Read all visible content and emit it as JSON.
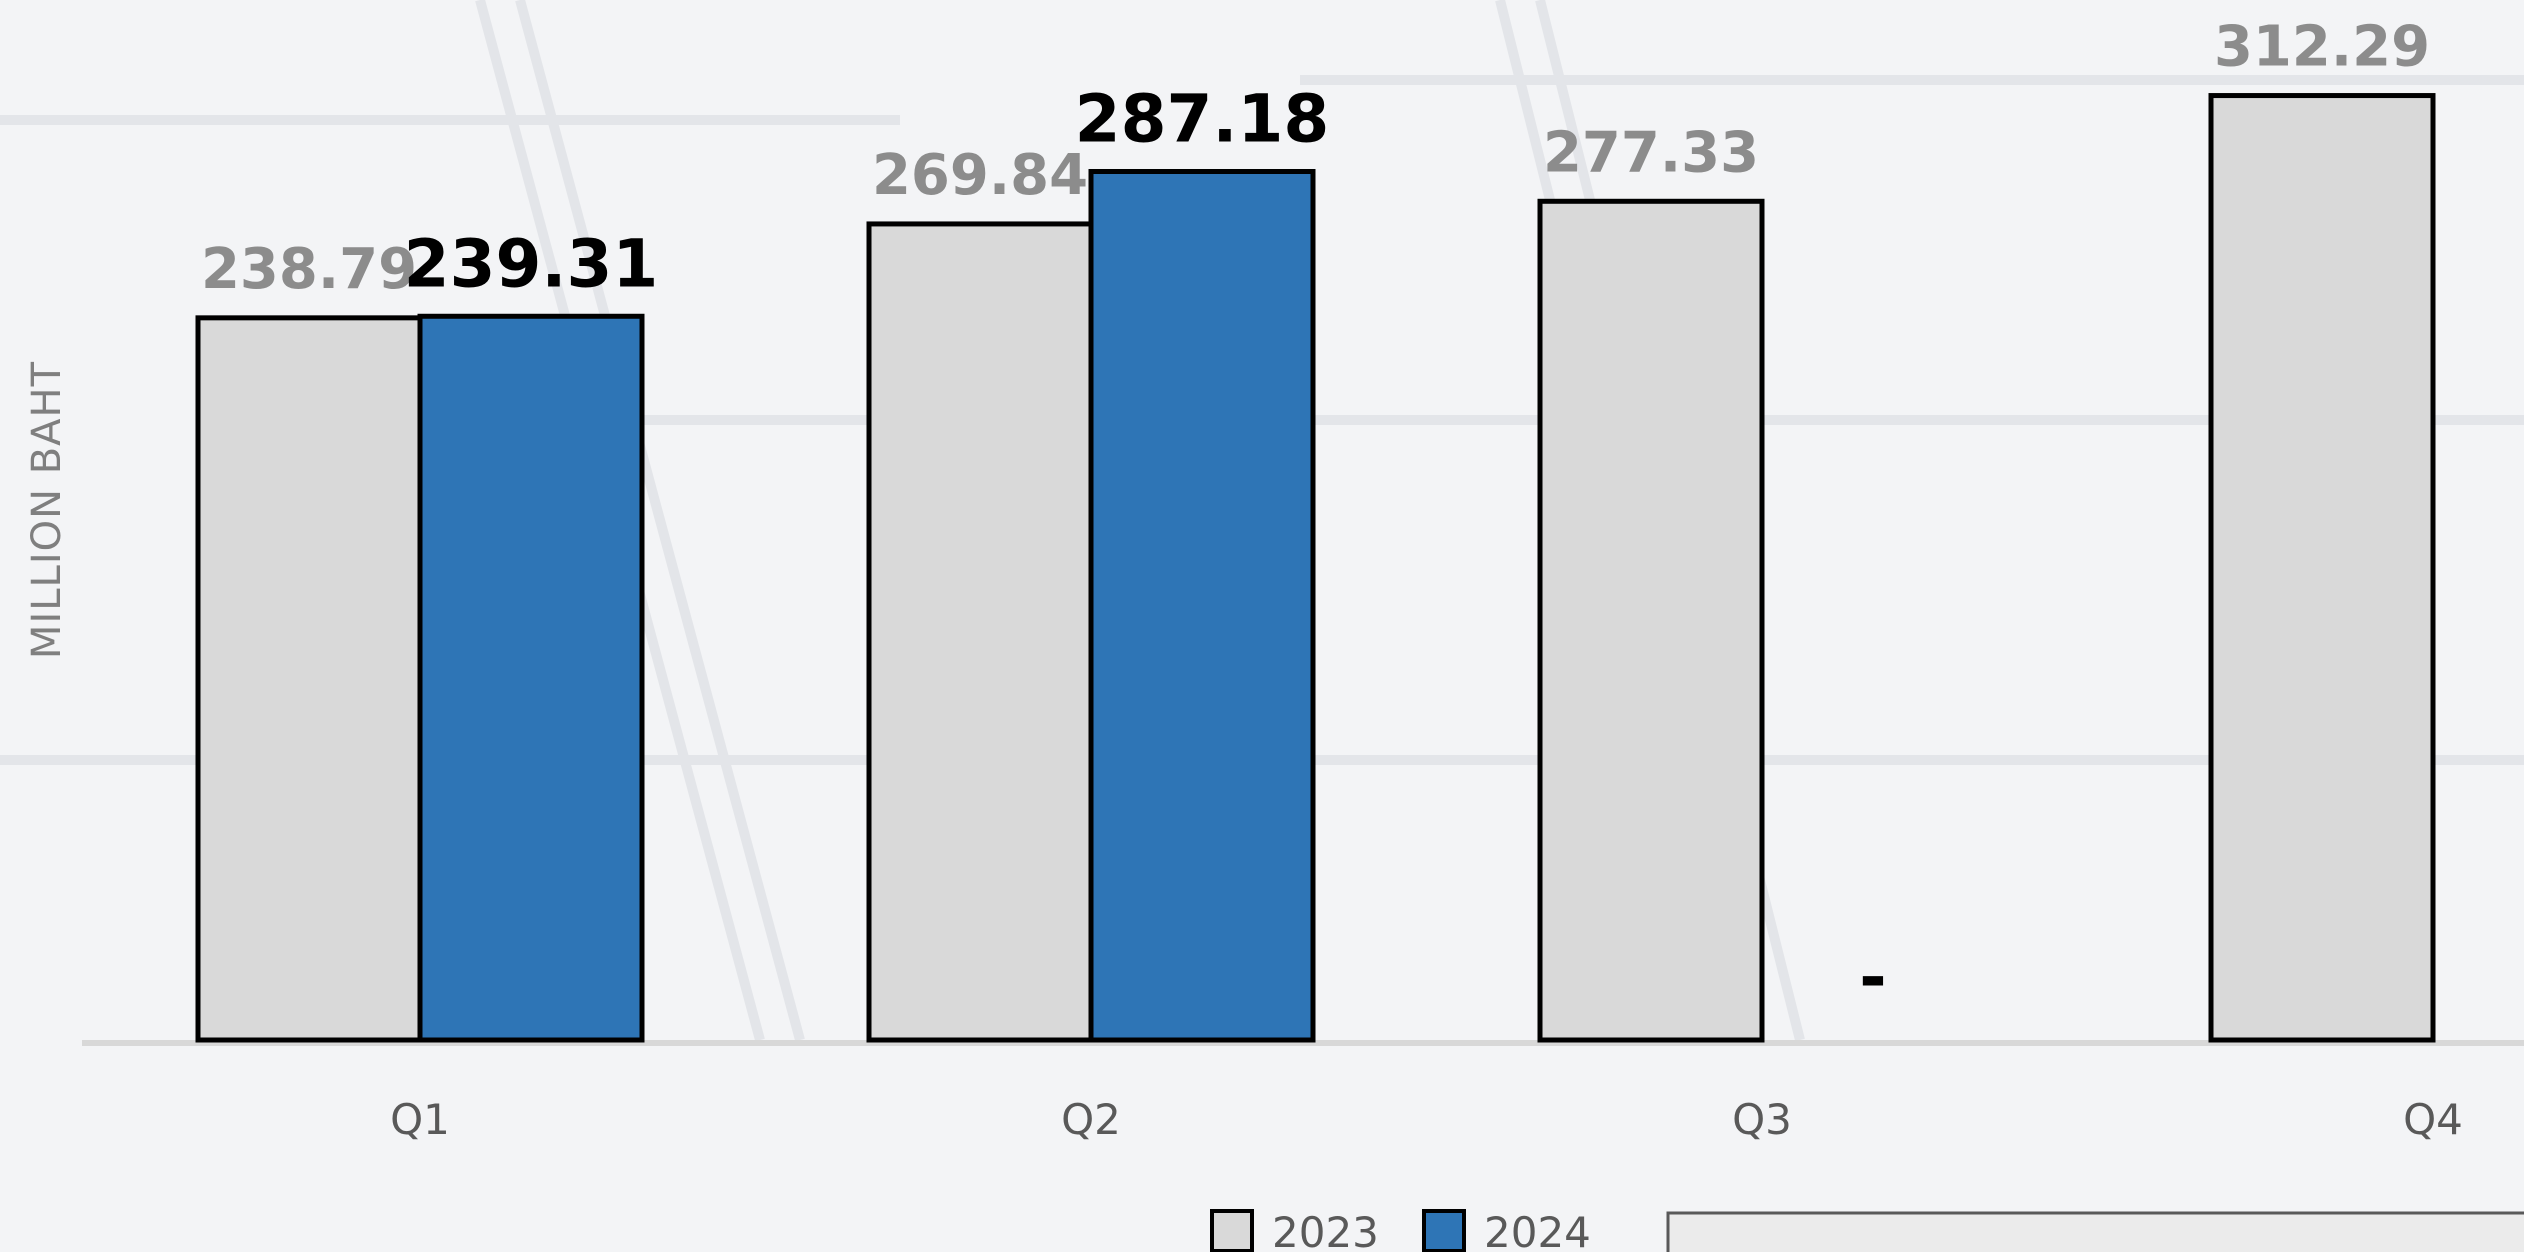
{
  "chart_data": {
    "type": "bar",
    "categories": [
      "Q1",
      "Q2",
      "Q3",
      "Q4"
    ],
    "series": [
      {
        "name": "2023",
        "values": [
          238.79,
          269.84,
          277.33,
          312.29
        ],
        "labels": [
          "238.79",
          "269.84",
          "277.33",
          "312.29"
        ],
        "color": "#d9d9d9"
      },
      {
        "name": "2024",
        "values": [
          239.31,
          287.18,
          0,
          null
        ],
        "labels": [
          "239.31",
          "287.18",
          "-",
          ""
        ],
        "color": "#2e75b6"
      }
    ],
    "ylabel": "MILLION BAHT",
    "xlabel": "",
    "title": "",
    "ylim": [
      0,
      330
    ],
    "legend": "bottom",
    "grid": false
  }
}
